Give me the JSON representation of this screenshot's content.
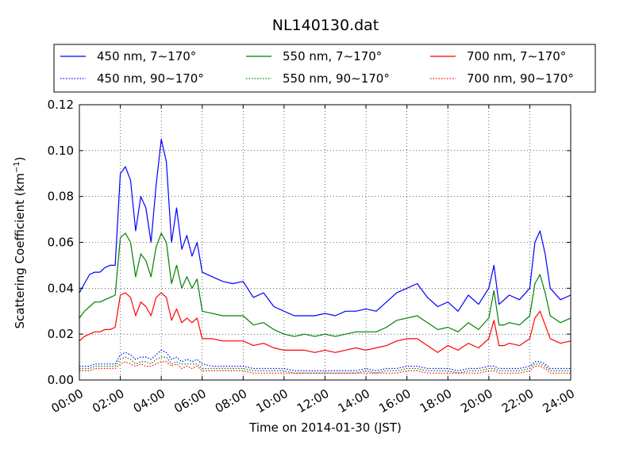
{
  "chart_data": {
    "type": "line",
    "title": "NL140130.dat",
    "xlabel": "Time on 2014-01-30 (JST)",
    "ylabel_main": "Scattering Coefficient (km",
    "ylabel_sup": "−1",
    "ylabel_close": ")",
    "x_range_hours": [
      0,
      24
    ],
    "ylim": [
      0,
      0.12
    ],
    "x_ticks": [
      "00:00",
      "02:00",
      "04:00",
      "06:00",
      "08:00",
      "10:00",
      "12:00",
      "14:00",
      "16:00",
      "18:00",
      "20:00",
      "22:00",
      "24:00"
    ],
    "y_ticks": [
      "0.00",
      "0.02",
      "0.04",
      "0.06",
      "0.08",
      "0.10",
      "0.12"
    ],
    "grid": true,
    "legend_placement": "top, above plot, 3 columns",
    "x_hours": [
      0,
      0.25,
      0.5,
      0.75,
      1,
      1.25,
      1.5,
      1.75,
      2,
      2.25,
      2.5,
      2.75,
      3,
      3.25,
      3.5,
      3.75,
      4,
      4.25,
      4.5,
      4.75,
      5,
      5.25,
      5.5,
      5.75,
      6,
      6.5,
      7,
      7.5,
      8,
      8.5,
      9,
      9.5,
      10,
      10.5,
      11,
      11.5,
      12,
      12.5,
      13,
      13.5,
      14,
      14.5,
      15,
      15.5,
      16,
      16.5,
      17,
      17.5,
      18,
      18.5,
      19,
      19.5,
      20,
      20.25,
      20.5,
      20.75,
      21,
      21.5,
      22,
      22.25,
      22.5,
      22.75,
      23,
      23.5,
      24
    ],
    "series": [
      {
        "name": "450 nm, 7∼170°",
        "color": "#0000ff",
        "style": "solid",
        "values": [
          0.038,
          0.042,
          0.046,
          0.047,
          0.047,
          0.049,
          0.05,
          0.05,
          0.09,
          0.093,
          0.087,
          0.065,
          0.08,
          0.075,
          0.06,
          0.085,
          0.105,
          0.095,
          0.06,
          0.075,
          0.057,
          0.063,
          0.054,
          0.06,
          0.047,
          0.045,
          0.043,
          0.042,
          0.043,
          0.036,
          0.038,
          0.032,
          0.03,
          0.028,
          0.028,
          0.028,
          0.029,
          0.028,
          0.03,
          0.03,
          0.031,
          0.03,
          0.034,
          0.038,
          0.04,
          0.042,
          0.036,
          0.032,
          0.034,
          0.03,
          0.037,
          0.033,
          0.04,
          0.05,
          0.033,
          0.035,
          0.037,
          0.035,
          0.04,
          0.06,
          0.065,
          0.055,
          0.04,
          0.035,
          0.037
        ]
      },
      {
        "name": "550 nm, 7∼170°",
        "color": "#008000",
        "style": "solid",
        "values": [
          0.027,
          0.03,
          0.032,
          0.034,
          0.034,
          0.035,
          0.036,
          0.037,
          0.062,
          0.064,
          0.06,
          0.045,
          0.055,
          0.052,
          0.045,
          0.058,
          0.064,
          0.06,
          0.042,
          0.05,
          0.04,
          0.045,
          0.04,
          0.044,
          0.03,
          0.029,
          0.028,
          0.028,
          0.028,
          0.024,
          0.025,
          0.022,
          0.02,
          0.019,
          0.02,
          0.019,
          0.02,
          0.019,
          0.02,
          0.021,
          0.021,
          0.021,
          0.023,
          0.026,
          0.027,
          0.028,
          0.025,
          0.022,
          0.023,
          0.021,
          0.025,
          0.022,
          0.027,
          0.039,
          0.024,
          0.024,
          0.025,
          0.024,
          0.028,
          0.042,
          0.046,
          0.038,
          0.028,
          0.025,
          0.027
        ]
      },
      {
        "name": "700 nm, 7∼170°",
        "color": "#ff0000",
        "style": "solid",
        "values": [
          0.017,
          0.019,
          0.02,
          0.021,
          0.021,
          0.022,
          0.022,
          0.023,
          0.037,
          0.038,
          0.036,
          0.028,
          0.034,
          0.032,
          0.028,
          0.036,
          0.038,
          0.036,
          0.026,
          0.031,
          0.025,
          0.027,
          0.025,
          0.027,
          0.018,
          0.018,
          0.017,
          0.017,
          0.017,
          0.015,
          0.016,
          0.014,
          0.013,
          0.013,
          0.013,
          0.012,
          0.013,
          0.012,
          0.013,
          0.014,
          0.013,
          0.014,
          0.015,
          0.017,
          0.018,
          0.018,
          0.015,
          0.012,
          0.015,
          0.013,
          0.016,
          0.014,
          0.018,
          0.026,
          0.015,
          0.015,
          0.016,
          0.015,
          0.018,
          0.027,
          0.03,
          0.024,
          0.018,
          0.016,
          0.017
        ]
      },
      {
        "name": "450 nm, 90∼170°",
        "color": "#0000ff",
        "style": "dotted",
        "values": [
          0.006,
          0.006,
          0.006,
          0.007,
          0.007,
          0.007,
          0.007,
          0.007,
          0.011,
          0.012,
          0.011,
          0.009,
          0.01,
          0.01,
          0.009,
          0.011,
          0.013,
          0.012,
          0.009,
          0.01,
          0.008,
          0.009,
          0.008,
          0.009,
          0.007,
          0.006,
          0.006,
          0.006,
          0.006,
          0.005,
          0.005,
          0.005,
          0.005,
          0.004,
          0.004,
          0.004,
          0.004,
          0.004,
          0.004,
          0.004,
          0.005,
          0.004,
          0.005,
          0.005,
          0.006,
          0.006,
          0.005,
          0.005,
          0.005,
          0.004,
          0.005,
          0.005,
          0.006,
          0.006,
          0.005,
          0.005,
          0.005,
          0.005,
          0.006,
          0.008,
          0.008,
          0.007,
          0.005,
          0.005,
          0.005
        ]
      },
      {
        "name": "550 nm, 90∼170°",
        "color": "#008000",
        "style": "dotted",
        "values": [
          0.005,
          0.005,
          0.005,
          0.006,
          0.006,
          0.006,
          0.006,
          0.006,
          0.009,
          0.01,
          0.009,
          0.007,
          0.008,
          0.008,
          0.007,
          0.009,
          0.01,
          0.01,
          0.007,
          0.008,
          0.007,
          0.007,
          0.007,
          0.007,
          0.005,
          0.005,
          0.005,
          0.005,
          0.005,
          0.004,
          0.004,
          0.004,
          0.004,
          0.003,
          0.003,
          0.003,
          0.003,
          0.003,
          0.003,
          0.003,
          0.004,
          0.003,
          0.004,
          0.004,
          0.005,
          0.005,
          0.004,
          0.004,
          0.004,
          0.003,
          0.004,
          0.004,
          0.005,
          0.005,
          0.004,
          0.004,
          0.004,
          0.004,
          0.005,
          0.007,
          0.007,
          0.006,
          0.004,
          0.004,
          0.004
        ]
      },
      {
        "name": "700 nm, 90∼170°",
        "color": "#ff0000",
        "style": "dotted",
        "values": [
          0.004,
          0.004,
          0.004,
          0.005,
          0.005,
          0.005,
          0.005,
          0.005,
          0.007,
          0.008,
          0.007,
          0.006,
          0.007,
          0.006,
          0.006,
          0.007,
          0.008,
          0.008,
          0.006,
          0.007,
          0.005,
          0.006,
          0.005,
          0.006,
          0.004,
          0.004,
          0.004,
          0.004,
          0.004,
          0.003,
          0.003,
          0.003,
          0.003,
          0.003,
          0.003,
          0.003,
          0.003,
          0.003,
          0.003,
          0.003,
          0.003,
          0.003,
          0.003,
          0.003,
          0.004,
          0.004,
          0.003,
          0.003,
          0.003,
          0.003,
          0.003,
          0.003,
          0.004,
          0.004,
          0.003,
          0.003,
          0.003,
          0.003,
          0.004,
          0.006,
          0.006,
          0.005,
          0.003,
          0.003,
          0.003
        ]
      }
    ]
  }
}
